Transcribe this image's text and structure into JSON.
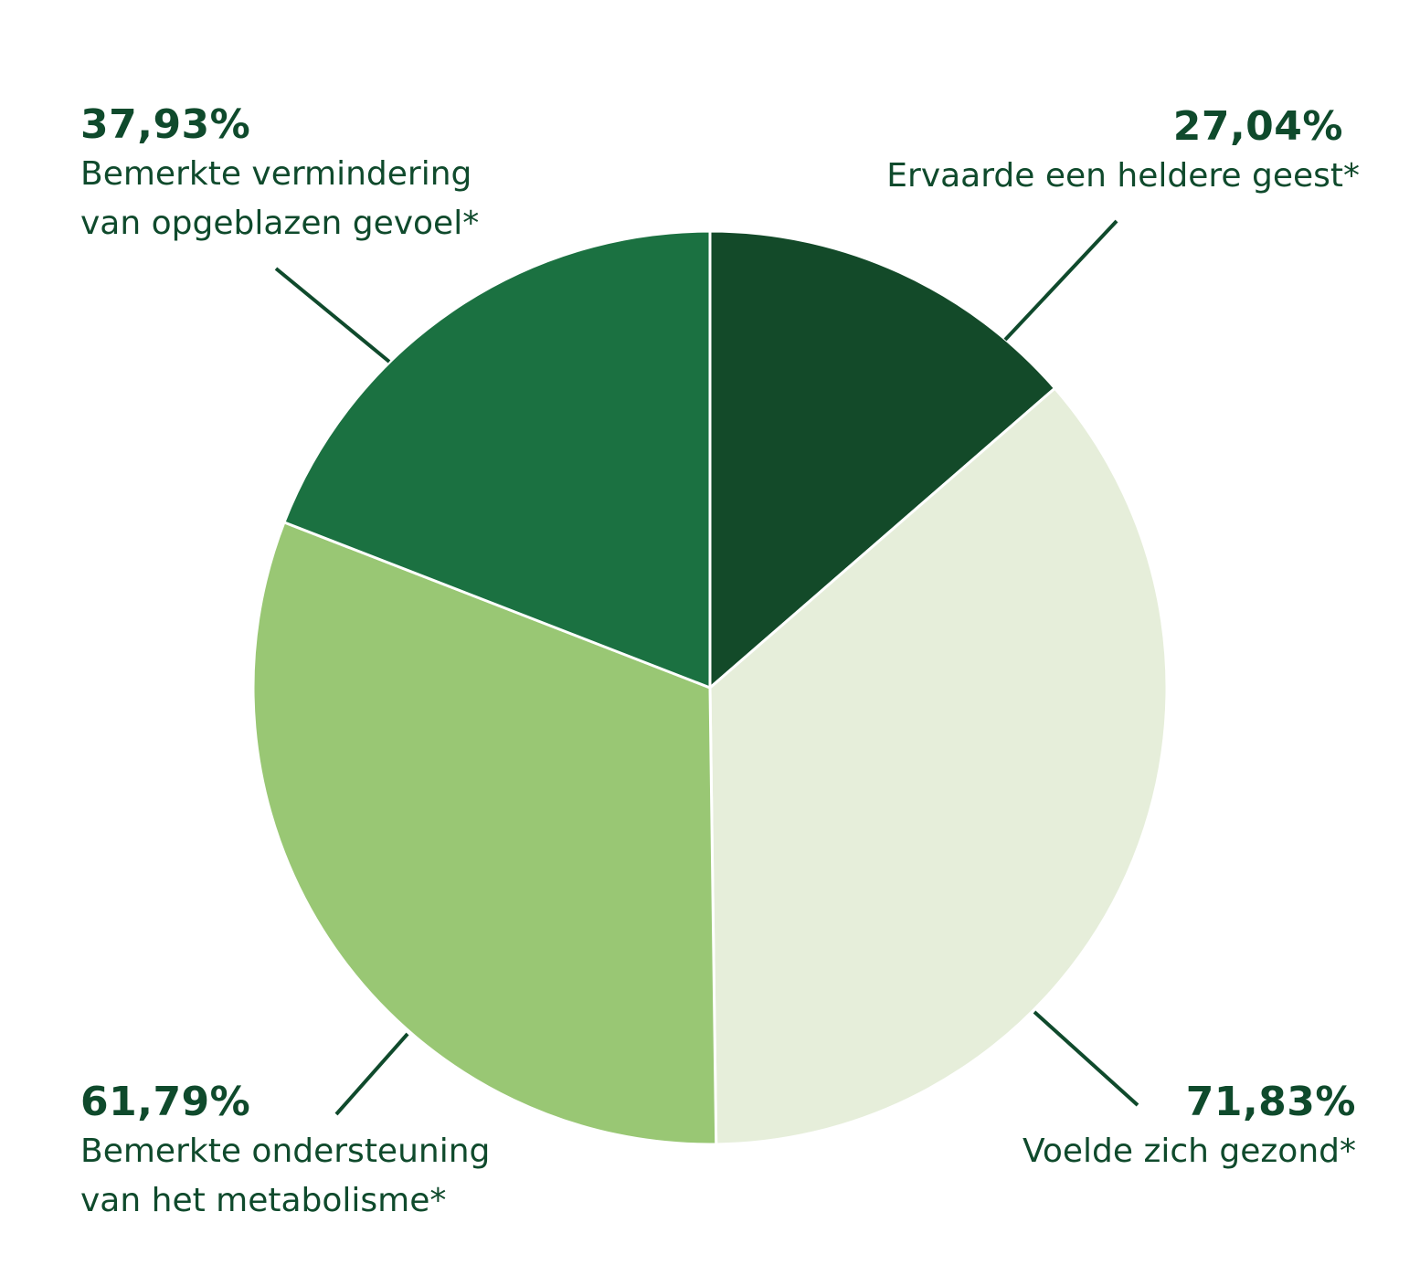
{
  "chart_data": {
    "type": "pie",
    "slices": [
      {
        "label_lines": [
          "Ervaarde een heldere geest*"
        ],
        "value": 27.04,
        "value_text": "27,04%",
        "color": "#134a29"
      },
      {
        "label_lines": [
          "Voelde zich gezond*"
        ],
        "value": 71.83,
        "value_text": "71,83%",
        "color": "#e6eeda"
      },
      {
        "label_lines": [
          "Bemerkte ondersteuning",
          "van het metabolisme*"
        ],
        "value": 61.79,
        "value_text": "61,79%",
        "color": "#99c774"
      },
      {
        "label_lines": [
          "Bemerkte vermindering",
          "van opgeblazen gevoel*"
        ],
        "value": 37.93,
        "value_text": "37,93%",
        "color": "#1b7141"
      }
    ]
  },
  "colors": {
    "text": "#0f4a2c",
    "leader": "#0f4a2c",
    "separator": "#ffffff"
  }
}
